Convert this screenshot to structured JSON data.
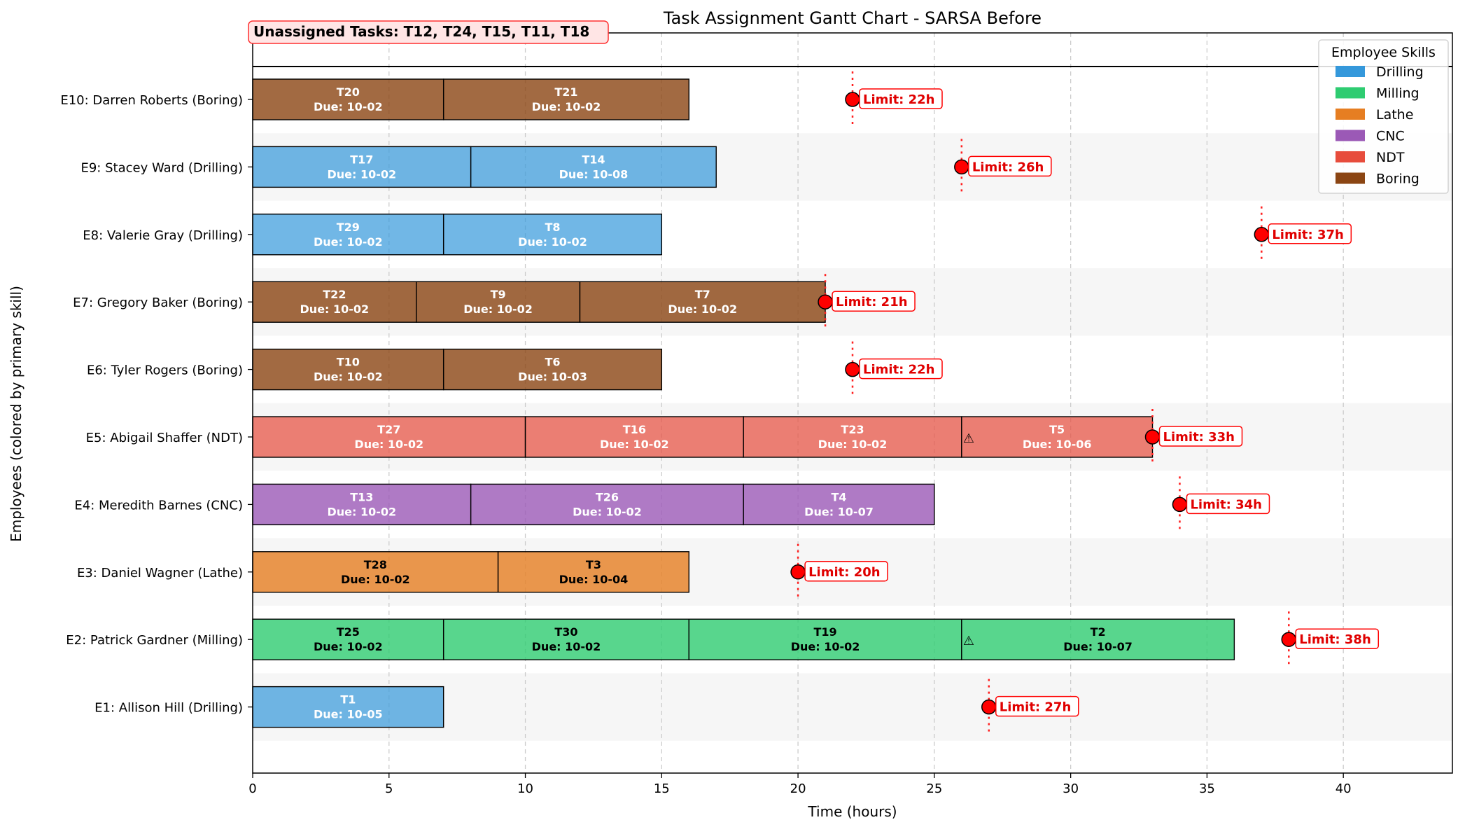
{
  "chart_data": {
    "type": "gantt",
    "title": "Task Assignment Gantt Chart - SARSA Before",
    "xlabel": "Time (hours)",
    "ylabel": "Employees (colored by primary skill)",
    "xlim": [
      0,
      44
    ],
    "xticks": [
      0,
      5,
      10,
      15,
      20,
      25,
      30,
      35,
      40
    ],
    "grid": "x-dashed",
    "unassigned_label": "Unassigned Tasks: T12, T24, T15, T11, T18",
    "legend": {
      "title": "Employee Skills",
      "placement": "top-right",
      "items": [
        {
          "label": "Drilling",
          "color": "#3498db"
        },
        {
          "label": "Milling",
          "color": "#2ecc71"
        },
        {
          "label": "Lathe",
          "color": "#e67e22"
        },
        {
          "label": "CNC",
          "color": "#9b59b6"
        },
        {
          "label": "NDT",
          "color": "#e74c3c"
        },
        {
          "label": "Boring",
          "color": "#8b4513"
        }
      ]
    },
    "employees": [
      {
        "label": "E10: Darren Roberts (Boring)",
        "skill": "Boring",
        "limit": 22,
        "limit_label": "Limit: 22h",
        "tasks": [
          {
            "id": "T20",
            "due": "Due: 10-02",
            "start": 0,
            "end": 7
          },
          {
            "id": "T21",
            "due": "Due: 10-02",
            "start": 7,
            "end": 16
          }
        ]
      },
      {
        "label": "E9: Stacey Ward (Drilling)",
        "skill": "Drilling",
        "limit": 26,
        "limit_label": "Limit: 26h",
        "tasks": [
          {
            "id": "T17",
            "due": "Due: 10-02",
            "start": 0,
            "end": 8
          },
          {
            "id": "T14",
            "due": "Due: 10-08",
            "start": 8,
            "end": 17
          }
        ]
      },
      {
        "label": "E8: Valerie Gray (Drilling)",
        "skill": "Drilling",
        "limit": 37,
        "limit_label": "Limit: 37h",
        "tasks": [
          {
            "id": "T29",
            "due": "Due: 10-02",
            "start": 0,
            "end": 7
          },
          {
            "id": "T8",
            "due": "Due: 10-02",
            "start": 7,
            "end": 15
          }
        ]
      },
      {
        "label": "E7: Gregory Baker (Boring)",
        "skill": "Boring",
        "limit": 21,
        "limit_label": "Limit: 21h",
        "tasks": [
          {
            "id": "T22",
            "due": "Due: 10-02",
            "start": 0,
            "end": 6
          },
          {
            "id": "T9",
            "due": "Due: 10-02",
            "start": 6,
            "end": 12
          },
          {
            "id": "T7",
            "due": "Due: 10-02",
            "start": 12,
            "end": 21
          }
        ]
      },
      {
        "label": "E6: Tyler Rogers (Boring)",
        "skill": "Boring",
        "limit": 22,
        "limit_label": "Limit: 22h",
        "tasks": [
          {
            "id": "T10",
            "due": "Due: 10-02",
            "start": 0,
            "end": 7
          },
          {
            "id": "T6",
            "due": "Due: 10-03",
            "start": 7,
            "end": 15
          }
        ]
      },
      {
        "label": "E5: Abigail Shaffer (NDT)",
        "skill": "NDT",
        "limit": 33,
        "limit_label": "Limit: 33h",
        "tasks": [
          {
            "id": "T27",
            "due": "Due: 10-02",
            "start": 0,
            "end": 10
          },
          {
            "id": "T16",
            "due": "Due: 10-02",
            "start": 10,
            "end": 18
          },
          {
            "id": "T23",
            "due": "Due: 10-02",
            "start": 18,
            "end": 26
          },
          {
            "id": "T5",
            "due": "Due: 10-06",
            "start": 26,
            "end": 33,
            "warning": "⚠"
          }
        ]
      },
      {
        "label": "E4: Meredith Barnes (CNC)",
        "skill": "CNC",
        "limit": 34,
        "limit_label": "Limit: 34h",
        "tasks": [
          {
            "id": "T13",
            "due": "Due: 10-02",
            "start": 0,
            "end": 8
          },
          {
            "id": "T26",
            "due": "Due: 10-02",
            "start": 8,
            "end": 18
          },
          {
            "id": "T4",
            "due": "Due: 10-07",
            "start": 18,
            "end": 25
          }
        ]
      },
      {
        "label": "E3: Daniel Wagner (Lathe)",
        "skill": "Lathe",
        "limit": 20,
        "limit_label": "Limit: 20h",
        "tasks": [
          {
            "id": "T28",
            "due": "Due: 10-02",
            "start": 0,
            "end": 9
          },
          {
            "id": "T3",
            "due": "Due: 10-04",
            "start": 9,
            "end": 16
          }
        ]
      },
      {
        "label": "E2: Patrick Gardner (Milling)",
        "skill": "Milling",
        "limit": 38,
        "limit_label": "Limit: 38h",
        "tasks": [
          {
            "id": "T25",
            "due": "Due: 10-02",
            "start": 0,
            "end": 7
          },
          {
            "id": "T30",
            "due": "Due: 10-02",
            "start": 7,
            "end": 16
          },
          {
            "id": "T19",
            "due": "Due: 10-02",
            "start": 16,
            "end": 26
          },
          {
            "id": "T2",
            "due": "Due: 10-07",
            "start": 26,
            "end": 36,
            "warning": "⚠"
          }
        ]
      },
      {
        "label": "E1: Allison Hill (Drilling)",
        "skill": "Drilling",
        "limit": 27,
        "limit_label": "Limit: 27h",
        "tasks": [
          {
            "id": "T1",
            "due": "Due: 10-05",
            "start": 0,
            "end": 7
          }
        ]
      }
    ]
  }
}
